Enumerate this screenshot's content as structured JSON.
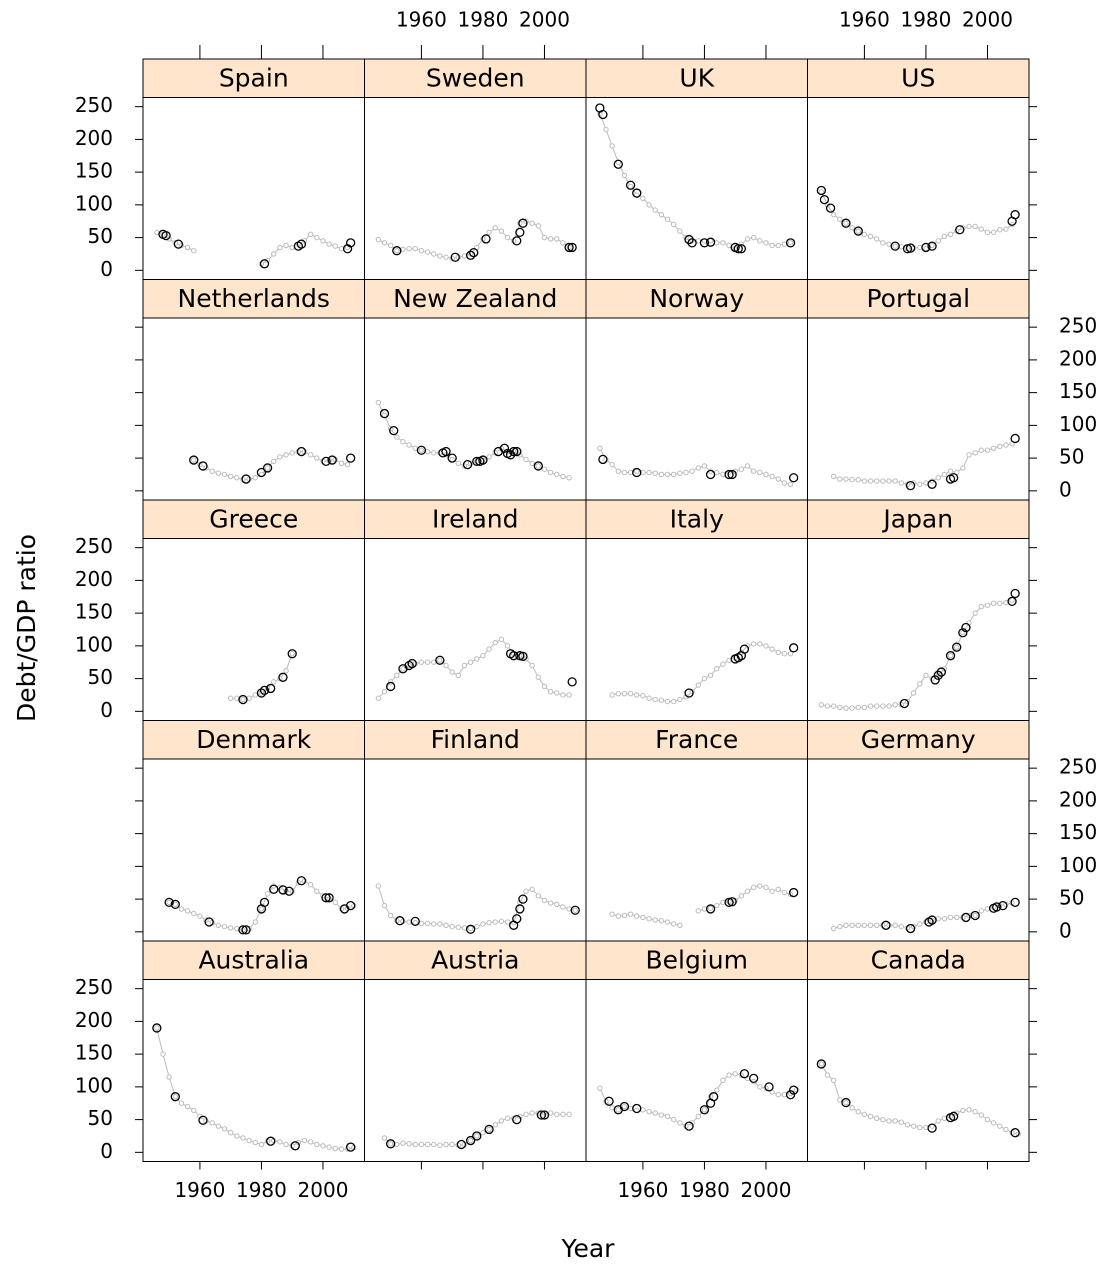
{
  "chart_data": {
    "type": "scatter",
    "xlabel": "Year",
    "ylabel": "Debt/GDP ratio",
    "xlim": [
      1941.5,
      2013.5
    ],
    "ylim": [
      -14,
      264
    ],
    "xticks": [
      1960,
      1980,
      2000
    ],
    "yticks": [
      0,
      50,
      100,
      150,
      200,
      250
    ],
    "color": "#bbbbbb",
    "highlight_color": "#000000",
    "strip_color": "#ffe5cc",
    "x": [
      1946,
      1948,
      1950,
      1952,
      1954,
      1956,
      1958,
      1960,
      1962,
      1964,
      1966,
      1968,
      1970,
      1972,
      1974,
      1976,
      1978,
      1980,
      1982,
      1984,
      1986,
      1988,
      1990,
      1992,
      1994,
      1996,
      1998,
      2000,
      2002,
      2004,
      2006,
      2008,
      2010
    ],
    "panels": [
      {
        "title": "Australia",
        "values": [
          190,
          150,
          115,
          85,
          75,
          70,
          64,
          55,
          48,
          45,
          40,
          36,
          30,
          25,
          22,
          18,
          15,
          12,
          17,
          18,
          16,
          12,
          10,
          15,
          18,
          16,
          12,
          10,
          8,
          6,
          5,
          5,
          7
        ],
        "highlight": {
          "x": [
            1946,
            1952,
            1961,
            1983,
            1991,
            2009
          ],
          "values": [
            190,
            85,
            49,
            17,
            10,
            8
          ]
        }
      },
      {
        "title": "Austria",
        "values": [
          null,
          22,
          13,
          12,
          14,
          13,
          12,
          12,
          12,
          12,
          11,
          12,
          12,
          11,
          12,
          18,
          25,
          30,
          35,
          42,
          48,
          52,
          52,
          55,
          58,
          60,
          60,
          60,
          60,
          58,
          58,
          58,
          null
        ],
        "highlight": {
          "x": [
            1950,
            1973,
            1976,
            1978,
            1982,
            1991,
            1999,
            2000
          ],
          "values": [
            13,
            12,
            18,
            25,
            35,
            50,
            57,
            57
          ]
        }
      },
      {
        "title": "Belgium",
        "values": [
          98,
          78,
          68,
          65,
          70,
          67,
          64,
          65,
          62,
          60,
          57,
          55,
          50,
          45,
          40,
          45,
          55,
          65,
          85,
          95,
          110,
          118,
          120,
          118,
          113,
          108,
          100,
          98,
          92,
          88,
          88,
          90,
          96
        ],
        "highlight": {
          "x": [
            1949,
            1952,
            1954,
            1958,
            1975,
            1980,
            1982,
            1983,
            1993,
            1996,
            2001,
            2008,
            2009
          ],
          "values": [
            78,
            65,
            70,
            67,
            40,
            65,
            75,
            85,
            120,
            113,
            100,
            88,
            95
          ]
        }
      },
      {
        "title": "Canada",
        "values": [
          135,
          118,
          110,
          80,
          76,
          68,
          62,
          58,
          55,
          52,
          50,
          48,
          48,
          46,
          42,
          40,
          38,
          38,
          40,
          48,
          52,
          55,
          60,
          64,
          65,
          62,
          57,
          50,
          45,
          40,
          35,
          30,
          28
        ],
        "highlight": {
          "x": [
            1946,
            1954,
            1982,
            1988,
            1989,
            2009
          ],
          "values": [
            135,
            76,
            37,
            53,
            55,
            30
          ]
        }
      },
      {
        "title": "Denmark",
        "values": [
          null,
          null,
          45,
          42,
          35,
          32,
          28,
          24,
          18,
          14,
          10,
          8,
          6,
          5,
          3,
          5,
          15,
          35,
          58,
          70,
          68,
          62,
          62,
          75,
          78,
          72,
          62,
          55,
          50,
          45,
          35,
          36,
          40
        ],
        "highlight": {
          "x": [
            1950,
            1952,
            1963,
            1974,
            1975,
            1980,
            1981,
            1984,
            1987,
            1989,
            1993,
            2001,
            2002,
            2007,
            2009
          ],
          "values": [
            45,
            42,
            15,
            3,
            3,
            35,
            45,
            65,
            64,
            62,
            78,
            52,
            52,
            35,
            40
          ]
        }
      },
      {
        "title": "Finland",
        "values": [
          70,
          40,
          25,
          17,
          16,
          15,
          14,
          13,
          13,
          12,
          12,
          10,
          8,
          7,
          6,
          5,
          8,
          12,
          14,
          15,
          16,
          15,
          14,
          45,
          62,
          65,
          55,
          48,
          44,
          42,
          38,
          35,
          33
        ],
        "highlight": {
          "x": [
            1953,
            1958,
            1976,
            1990,
            1991,
            1992,
            1993,
            2010
          ],
          "values": [
            17,
            16,
            4,
            10,
            20,
            35,
            50,
            33
          ]
        }
      },
      {
        "title": "France",
        "values": [
          null,
          null,
          27,
          24,
          25,
          27,
          24,
          22,
          20,
          18,
          17,
          15,
          12,
          10,
          null,
          null,
          32,
          35,
          36,
          40,
          45,
          46,
          48,
          55,
          62,
          68,
          70,
          68,
          62,
          65,
          60,
          57,
          null
        ],
        "highlight": {
          "x": [
            1982,
            1988,
            1989,
            2009
          ],
          "values": [
            35,
            45,
            46,
            60
          ]
        }
      },
      {
        "title": "Germany",
        "values": [
          null,
          null,
          5,
          8,
          10,
          10,
          10,
          10,
          10,
          10,
          10,
          10,
          10,
          8,
          6,
          8,
          12,
          15,
          18,
          20,
          20,
          22,
          22,
          22,
          25,
          25,
          32,
          35,
          38,
          40,
          42,
          44,
          null
        ],
        "highlight": {
          "x": [
            1967,
            1975,
            1981,
            1982,
            1993,
            1996,
            2002,
            2003,
            2005,
            2009
          ],
          "values": [
            10,
            5,
            15,
            18,
            22,
            25,
            36,
            38,
            40,
            45
          ]
        }
      },
      {
        "title": "Greece",
        "values": [
          null,
          null,
          null,
          null,
          null,
          null,
          null,
          null,
          null,
          null,
          null,
          null,
          20,
          20,
          18,
          20,
          25,
          28,
          35,
          45,
          50,
          62,
          88,
          null,
          null,
          null,
          null,
          null,
          null,
          null,
          null,
          null,
          null
        ],
        "highlight": {
          "x": [
            1974,
            1980,
            1981,
            1983,
            1987,
            1990
          ],
          "values": [
            18,
            28,
            32,
            35,
            52,
            88
          ]
        }
      },
      {
        "title": "Ireland",
        "values": [
          20,
          30,
          45,
          55,
          65,
          70,
          73,
          75,
          75,
          75,
          78,
          70,
          60,
          55,
          70,
          75,
          80,
          85,
          95,
          105,
          110,
          100,
          88,
          85,
          80,
          70,
          52,
          38,
          30,
          28,
          25,
          25,
          null
        ],
        "highlight": {
          "x": [
            1950,
            1954,
            1956,
            1957,
            1966,
            1989,
            1990,
            1992,
            1993,
            2009
          ],
          "values": [
            38,
            65,
            70,
            73,
            78,
            88,
            85,
            85,
            84,
            45
          ]
        }
      },
      {
        "title": "Italy",
        "values": [
          null,
          null,
          25,
          27,
          27,
          27,
          25,
          24,
          20,
          18,
          17,
          15,
          15,
          18,
          22,
          30,
          40,
          50,
          55,
          65,
          72,
          78,
          82,
          90,
          100,
          103,
          103,
          100,
          95,
          90,
          88,
          88,
          null
        ],
        "highlight": {
          "x": [
            1975,
            1990,
            1991,
            1992,
            1993,
            2009
          ],
          "values": [
            28,
            80,
            82,
            85,
            95,
            97
          ]
        }
      },
      {
        "title": "Japan",
        "values": [
          10,
          8,
          8,
          6,
          5,
          5,
          6,
          6,
          8,
          8,
          8,
          8,
          10,
          10,
          15,
          28,
          42,
          55,
          50,
          55,
          65,
          85,
          98,
          120,
          135,
          150,
          160,
          162,
          165,
          165,
          166,
          170,
          null
        ],
        "highlight": {
          "x": [
            1973,
            1983,
            1984,
            1985,
            1988,
            1990,
            1992,
            1993,
            2008,
            2009
          ],
          "values": [
            12,
            48,
            55,
            60,
            85,
            98,
            120,
            128,
            168,
            180
          ]
        }
      },
      {
        "title": "Netherlands",
        "values": [
          null,
          null,
          null,
          null,
          null,
          null,
          47,
          40,
          35,
          30,
          27,
          25,
          22,
          20,
          17,
          18,
          20,
          25,
          35,
          45,
          52,
          55,
          58,
          60,
          60,
          55,
          50,
          45,
          46,
          48,
          42,
          40,
          null
        ],
        "highlight": {
          "x": [
            1958,
            1961,
            1975,
            1980,
            1982,
            1993,
            2001,
            2003,
            2009
          ],
          "values": [
            47,
            38,
            18,
            28,
            35,
            60,
            45,
            47,
            50
          ]
        }
      },
      {
        "title": "New Zealand",
        "values": [
          135,
          115,
          95,
          82,
          75,
          70,
          65,
          62,
          60,
          58,
          58,
          55,
          48,
          42,
          38,
          42,
          45,
          47,
          52,
          58,
          65,
          60,
          60,
          55,
          48,
          42,
          38,
          33,
          28,
          25,
          22,
          20,
          null
        ],
        "highlight": {
          "x": [
            1948,
            1951,
            1960,
            1967,
            1968,
            1970,
            1975,
            1978,
            1979,
            1980,
            1985,
            1987,
            1988,
            1989,
            1990,
            1991,
            1998
          ],
          "values": [
            118,
            92,
            62,
            58,
            60,
            50,
            40,
            45,
            45,
            47,
            60,
            65,
            57,
            55,
            60,
            60,
            38
          ]
        }
      },
      {
        "title": "Norway",
        "values": [
          65,
          48,
          40,
          30,
          28,
          28,
          30,
          28,
          28,
          27,
          25,
          25,
          25,
          27,
          28,
          30,
          35,
          38,
          30,
          28,
          25,
          28,
          30,
          33,
          38,
          30,
          28,
          25,
          22,
          18,
          12,
          10,
          null
        ],
        "highlight": {
          "x": [
            1947,
            1958,
            1982,
            1988,
            1989,
            2009
          ],
          "values": [
            48,
            28,
            25,
            25,
            25,
            20
          ]
        }
      },
      {
        "title": "Portugal",
        "values": [
          null,
          null,
          22,
          18,
          18,
          17,
          17,
          15,
          15,
          15,
          15,
          15,
          15,
          12,
          10,
          12,
          10,
          12,
          15,
          20,
          25,
          30,
          28,
          35,
          55,
          58,
          62,
          62,
          65,
          68,
          70,
          72,
          null
        ],
        "highlight": {
          "x": [
            1975,
            1982,
            1988,
            1989,
            2009
          ],
          "values": [
            8,
            10,
            18,
            20,
            80
          ]
        }
      },
      {
        "title": "Spain",
        "values": [
          58,
          55,
          48,
          42,
          38,
          35,
          30,
          null,
          null,
          null,
          null,
          null,
          null,
          null,
          null,
          null,
          null,
          10,
          15,
          25,
          35,
          38,
          35,
          40,
          45,
          55,
          50,
          45,
          40,
          37,
          33,
          35,
          null
        ],
        "highlight": {
          "x": [
            1948,
            1949,
            1953,
            1981,
            1992,
            1993,
            2008,
            2009
          ],
          "values": [
            55,
            53,
            40,
            10,
            37,
            40,
            33,
            42
          ]
        }
      },
      {
        "title": "Sweden",
        "values": [
          47,
          42,
          38,
          30,
          32,
          33,
          33,
          30,
          28,
          25,
          22,
          20,
          18,
          20,
          22,
          25,
          35,
          48,
          58,
          65,
          60,
          50,
          45,
          72,
          75,
          72,
          68,
          50,
          48,
          48,
          42,
          35,
          null
        ],
        "highlight": {
          "x": [
            1952,
            1971,
            1976,
            1977,
            1981,
            1991,
            1992,
            1993,
            2008,
            2009
          ],
          "values": [
            30,
            20,
            23,
            27,
            48,
            45,
            58,
            72,
            35,
            35
          ]
        }
      },
      {
        "title": "UK",
        "values": [
          240,
          215,
          190,
          165,
          145,
          128,
          115,
          110,
          100,
          92,
          85,
          78,
          70,
          60,
          50,
          45,
          45,
          45,
          45,
          42,
          42,
          38,
          33,
          40,
          48,
          50,
          45,
          42,
          38,
          38,
          40,
          42,
          null
        ],
        "highlight": {
          "x": [
            1946,
            1947,
            1952,
            1956,
            1958,
            1975,
            1976,
            1980,
            1982,
            1990,
            1991,
            1992,
            2008
          ],
          "values": [
            248,
            238,
            162,
            130,
            118,
            47,
            42,
            42,
            43,
            35,
            33,
            33,
            42
          ]
        }
      },
      {
        "title": "US",
        "values": [
          120,
          100,
          85,
          78,
          72,
          65,
          60,
          55,
          52,
          48,
          42,
          40,
          37,
          36,
          33,
          34,
          35,
          33,
          38,
          45,
          52,
          55,
          60,
          65,
          67,
          67,
          63,
          58,
          58,
          62,
          63,
          70,
          null
        ],
        "highlight": {
          "x": [
            1946,
            1947,
            1949,
            1954,
            1958,
            1970,
            1974,
            1975,
            1980,
            1982,
            1991,
            2008,
            2009
          ],
          "values": [
            122,
            108,
            95,
            72,
            60,
            37,
            33,
            34,
            35,
            37,
            62,
            75,
            85
          ]
        }
      }
    ]
  }
}
